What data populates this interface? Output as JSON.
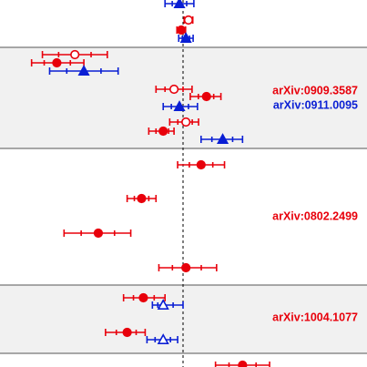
{
  "chart_data": {
    "type": "scatter",
    "title": "",
    "xlabel": "",
    "ylabel": "",
    "xlim": [
      -4.0,
      4.0
    ],
    "ylim": [
      0,
      403
    ],
    "grid": false,
    "legend": "none",
    "reference_line": {
      "x": 0.0,
      "style": "dashed",
      "color": "#000000"
    },
    "colors": {
      "red": "#e8000b",
      "blue": "#0a1fd4",
      "band_fill": "#f1f1f1",
      "band_border": "#555555"
    },
    "bands": [
      {
        "name": "band-1",
        "y_top": 52,
        "y_bottom": 163,
        "shaded": true,
        "labels": [
          {
            "text": "arXiv:0909.3587",
            "color": "red",
            "y": 100
          },
          {
            "text": "arXiv:0911.0095",
            "color": "blue",
            "y": 116
          }
        ]
      },
      {
        "name": "band-2",
        "y_top": 163,
        "y_bottom": 313,
        "shaded": false,
        "labels": [
          {
            "text": "arXiv:0802.2499",
            "color": "red",
            "y": 238
          }
        ]
      },
      {
        "name": "band-3",
        "y_top": 313,
        "y_bottom": 388,
        "shaded": true,
        "labels": [
          {
            "text": "arXiv:1004.1077",
            "color": "red",
            "y": 349
          }
        ]
      },
      {
        "name": "band-4",
        "y_top": 388,
        "y_bottom": 403,
        "shaded": false,
        "labels": []
      }
    ],
    "points": [
      {
        "color": "blue",
        "marker": "triangle",
        "filled": true,
        "y": 4,
        "x": -0.1,
        "err_lo": 0.4,
        "err_hi": 0.4
      },
      {
        "color": "red",
        "marker": "circle",
        "filled": false,
        "y": 22,
        "x": 0.15,
        "err_lo": 0.12,
        "err_hi": 0.12
      },
      {
        "color": "red",
        "marker": "circle",
        "filled": true,
        "y": 33,
        "x": -0.05,
        "err_lo": 0.12,
        "err_hi": 0.12
      },
      {
        "color": "blue",
        "marker": "triangle",
        "filled": true,
        "y": 42,
        "x": 0.08,
        "err_lo": 0.2,
        "err_hi": 0.2
      },
      {
        "color": "red",
        "marker": "circle",
        "filled": false,
        "y": 60,
        "x": -3.0,
        "err_lo": 0.9,
        "err_hi": 0.9
      },
      {
        "color": "red",
        "marker": "circle",
        "filled": true,
        "y": 69,
        "x": -3.5,
        "err_lo": 0.7,
        "err_hi": 0.75
      },
      {
        "color": "blue",
        "marker": "triangle",
        "filled": true,
        "y": 78,
        "x": -2.75,
        "err_lo": 0.95,
        "err_hi": 0.95
      },
      {
        "color": "red",
        "marker": "circle",
        "filled": false,
        "y": 98,
        "x": -0.25,
        "err_lo": 0.5,
        "err_hi": 0.5
      },
      {
        "color": "red",
        "marker": "circle",
        "filled": true,
        "y": 106,
        "x": 0.65,
        "err_lo": 0.45,
        "err_hi": 0.4
      },
      {
        "color": "blue",
        "marker": "triangle",
        "filled": true,
        "y": 117,
        "x": -0.1,
        "err_lo": 0.45,
        "err_hi": 0.5
      },
      {
        "color": "red",
        "marker": "circle",
        "filled": false,
        "y": 134,
        "x": 0.08,
        "err_lo": 0.45,
        "err_hi": 0.35
      },
      {
        "color": "red",
        "marker": "circle",
        "filled": true,
        "y": 144,
        "x": -0.55,
        "err_lo": 0.4,
        "err_hi": 0.3
      },
      {
        "color": "blue",
        "marker": "triangle",
        "filled": true,
        "y": 153,
        "x": 1.1,
        "err_lo": 0.6,
        "err_hi": 0.55
      },
      {
        "color": "red",
        "marker": "circle",
        "filled": true,
        "y": 181,
        "x": 0.5,
        "err_lo": 0.65,
        "err_hi": 0.65
      },
      {
        "color": "red",
        "marker": "circle",
        "filled": true,
        "y": 218,
        "x": -1.15,
        "err_lo": 0.4,
        "err_hi": 0.4
      },
      {
        "color": "red",
        "marker": "circle",
        "filled": true,
        "y": 256,
        "x": -2.35,
        "err_lo": 0.95,
        "err_hi": 0.9
      },
      {
        "color": "red",
        "marker": "circle",
        "filled": true,
        "y": 294,
        "x": 0.08,
        "err_lo": 0.75,
        "err_hi": 0.85
      },
      {
        "color": "red",
        "marker": "circle",
        "filled": true,
        "y": 327,
        "x": -1.1,
        "err_lo": 0.55,
        "err_hi": 0.6
      },
      {
        "color": "blue",
        "marker": "triangle",
        "filled": false,
        "y": 335,
        "x": -0.55,
        "err_lo": 0.3,
        "err_hi": 0.55
      },
      {
        "color": "red",
        "marker": "circle",
        "filled": true,
        "y": 365,
        "x": -1.55,
        "err_lo": 0.6,
        "err_hi": 0.5
      },
      {
        "color": "blue",
        "marker": "triangle",
        "filled": false,
        "y": 373,
        "x": -0.55,
        "err_lo": 0.45,
        "err_hi": 0.4
      },
      {
        "color": "red",
        "marker": "circle",
        "filled": true,
        "y": 401,
        "x": 1.65,
        "err_lo": 0.75,
        "err_hi": 0.75
      }
    ]
  }
}
